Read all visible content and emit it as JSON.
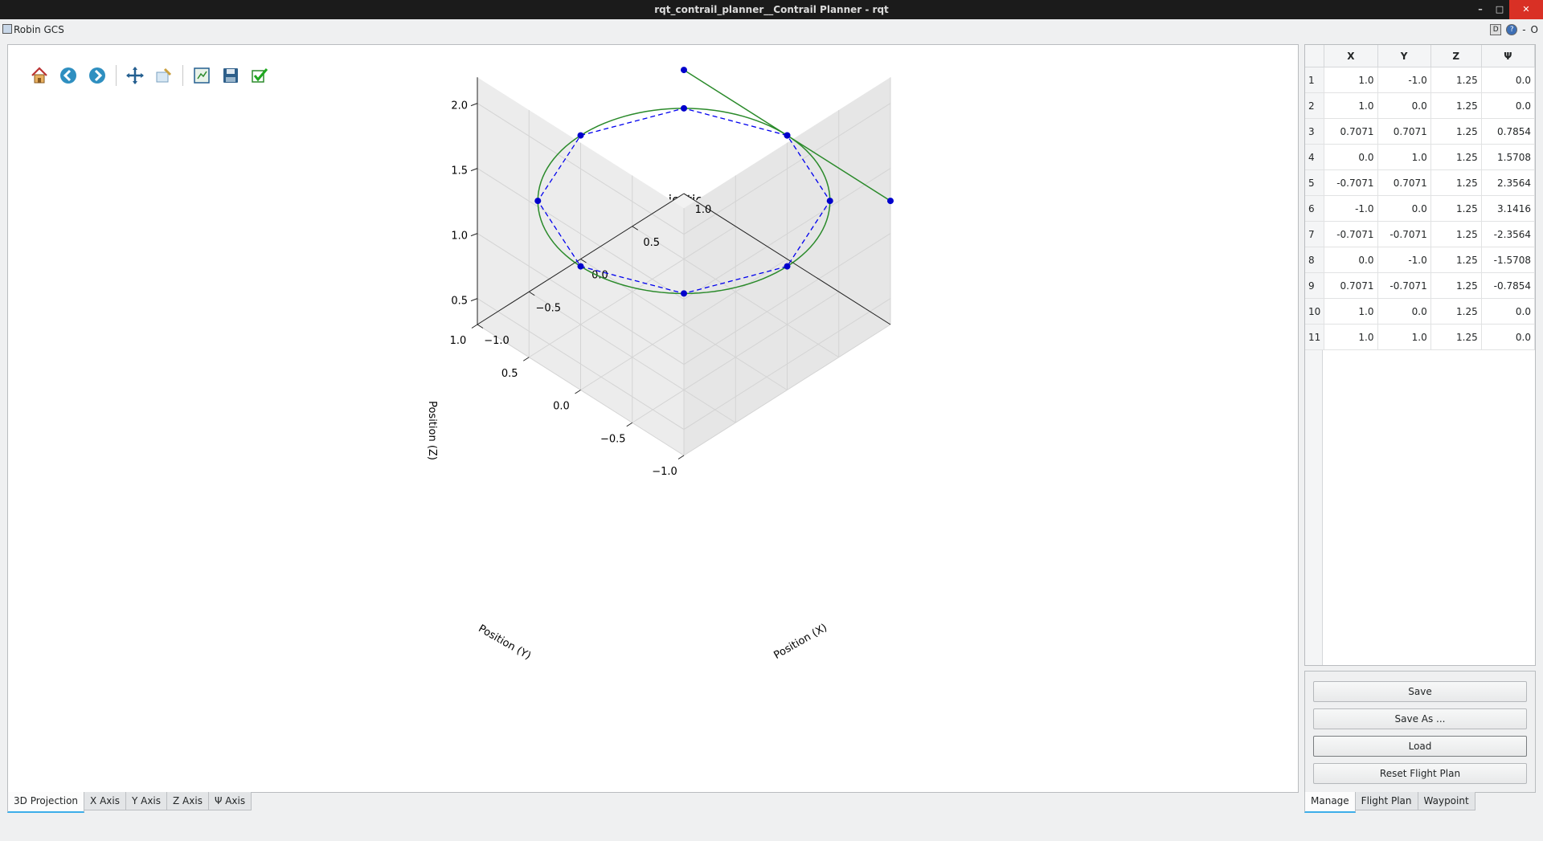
{
  "window": {
    "title": "rqt_contrail_planner__Contrail Planner - rqt",
    "minimize": "–",
    "maximize": "□",
    "close": "✕"
  },
  "plugin": {
    "title": "Robin GCS",
    "right_d": "D",
    "right_help": "?",
    "right_dash": "-",
    "right_o": "O"
  },
  "toolbar": {
    "icons": [
      "home-icon",
      "back-icon",
      "forward-icon",
      "pan-icon",
      "zoom-icon",
      "subplots-icon",
      "save-figure-icon",
      "apply-icon"
    ]
  },
  "plot": {
    "title": "3D Projection",
    "xlabel": "Position (X)",
    "ylabel": "Position (Y)",
    "zlabel": "Position (Z)",
    "x_ticks": [
      "1.0",
      "0.5",
      "0.0",
      "−0.5",
      "−1.0"
    ],
    "y_ticks": [
      "1.0",
      "0.5",
      "0.0",
      "−0.5",
      "−1.0"
    ],
    "z_ticks": [
      "2.0",
      "1.5",
      "1.0",
      "0.5"
    ]
  },
  "chart_data": {
    "type": "scatter",
    "title": "3D Projection",
    "xlabel": "Position (X)",
    "ylabel": "Position (Y)",
    "zlabel": "Position (Z)",
    "xlim": [
      -1.0,
      1.0
    ],
    "ylim": [
      -1.0,
      1.0
    ],
    "zlim": [
      0.3,
      2.2
    ],
    "grid": true,
    "colors": {
      "waypoints": "#0000cc",
      "path": "#2a8a2a",
      "segments": "#0000ee"
    },
    "points": [
      {
        "x": 1.0,
        "y": -1.0,
        "z": 1.25
      },
      {
        "x": 1.0,
        "y": 0.0,
        "z": 1.25
      },
      {
        "x": 0.7071,
        "y": 0.7071,
        "z": 1.25
      },
      {
        "x": 0.0,
        "y": 1.0,
        "z": 1.25
      },
      {
        "x": -0.7071,
        "y": 0.7071,
        "z": 1.25
      },
      {
        "x": -1.0,
        "y": 0.0,
        "z": 1.25
      },
      {
        "x": -0.7071,
        "y": -0.7071,
        "z": 1.25
      },
      {
        "x": 0.0,
        "y": -1.0,
        "z": 1.25
      },
      {
        "x": 0.7071,
        "y": -0.7071,
        "z": 1.25
      },
      {
        "x": 1.0,
        "y": 0.0,
        "z": 1.25
      },
      {
        "x": 1.0,
        "y": 1.0,
        "z": 1.25
      }
    ]
  },
  "table": {
    "headers": [
      "X",
      "Y",
      "Z",
      "Ψ"
    ],
    "rows": [
      [
        "1",
        "1.0",
        "-1.0",
        "1.25",
        "0.0"
      ],
      [
        "2",
        "1.0",
        "0.0",
        "1.25",
        "0.0"
      ],
      [
        "3",
        "0.7071",
        "0.7071",
        "1.25",
        "0.7854"
      ],
      [
        "4",
        "0.0",
        "1.0",
        "1.25",
        "1.5708"
      ],
      [
        "5",
        "-0.7071",
        "0.7071",
        "1.25",
        "2.3564"
      ],
      [
        "6",
        "-1.0",
        "0.0",
        "1.25",
        "3.1416"
      ],
      [
        "7",
        "-0.7071",
        "-0.7071",
        "1.25",
        "-2.3564"
      ],
      [
        "8",
        "0.0",
        "-1.0",
        "1.25",
        "-1.5708"
      ],
      [
        "9",
        "0.7071",
        "-0.7071",
        "1.25",
        "-0.7854"
      ],
      [
        "10",
        "1.0",
        "0.0",
        "1.25",
        "0.0"
      ],
      [
        "11",
        "1.0",
        "1.0",
        "1.25",
        "0.0"
      ]
    ]
  },
  "manage": {
    "save": "Save",
    "save_as": "Save As ...",
    "load": "Load",
    "reset": "Reset Flight Plan"
  },
  "plot_tabs": [
    "3D Projection",
    "X Axis",
    "Y Axis",
    "Z Axis",
    "Ψ Axis"
  ],
  "side_tabs": [
    "Manage",
    "Flight Plan",
    "Waypoint"
  ]
}
